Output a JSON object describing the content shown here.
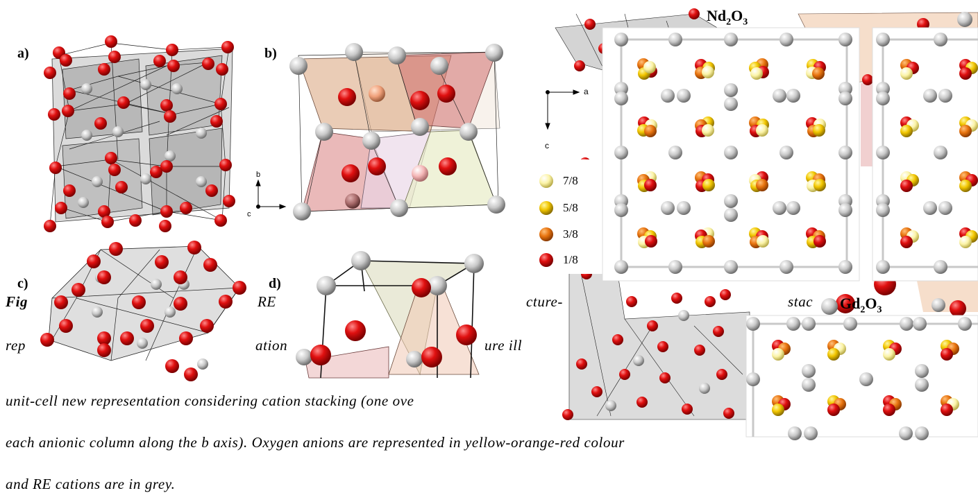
{
  "panels": {
    "a_label": "a)",
    "b_label": "b)",
    "c_label": "c)",
    "d_label": "d)"
  },
  "axes": {
    "panel_b": {
      "up": "b",
      "out": "c"
    },
    "top_right": {
      "right": "a",
      "down": "c"
    }
  },
  "legend": {
    "items": [
      {
        "label": "7/8",
        "color": "#fbf3a6"
      },
      {
        "label": "5/8",
        "color": "#f2c600"
      },
      {
        "label": "3/8",
        "color": "#e8740f"
      },
      {
        "label": "1/8",
        "color": "#e01010"
      }
    ]
  },
  "formulas": {
    "nd": "Nd",
    "nd_sub": "2",
    "nd_o": "O",
    "nd_o_sub": "3",
    "gd": "Gd",
    "gd_sub": "2",
    "gd_o": "O",
    "gd_o_sub": "3"
  },
  "caption": {
    "line1_fig": "Fig",
    "line1_a": "RE",
    "line1_b": "cture-",
    "line1_c": "stac",
    "line2_a": "rep",
    "line2_b": "ation",
    "line2_c": "ure ill",
    "line3": "unit-cell new representation considering cation stacking (one ove",
    "line4": "each anionic column along the b axis). Oxygen anions are represented in yellow-orange-red colour",
    "line5": "and RE cations are in grey."
  },
  "colors": {
    "oxygen_red": "#e01010",
    "oxygen_orange": "#e8740f",
    "oxygen_yellow": "#f2c600",
    "oxygen_pale": "#fbf3a6",
    "cation_grey": "#c8c8c8"
  }
}
